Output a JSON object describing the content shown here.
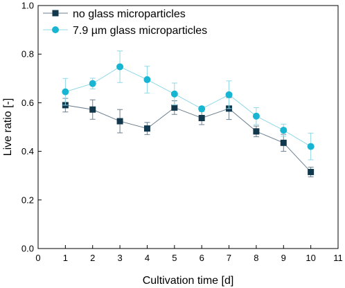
{
  "chart_data": {
    "type": "line",
    "xlabel": "Cultivation time [d]",
    "ylabel": "Live ratio [-]",
    "xlim": [
      0,
      11
    ],
    "ylim": [
      0.0,
      1.0
    ],
    "x_ticks": [
      "0",
      "1",
      "2",
      "3",
      "4",
      "5",
      "6",
      "7",
      "8",
      "9",
      "10",
      "11"
    ],
    "y_ticks": [
      "0.0",
      "0.2",
      "0.4",
      "0.6",
      "0.8",
      "1.0"
    ],
    "grid": false,
    "legend_position": "top-left",
    "series": [
      {
        "name": "no glass microparticles",
        "marker": "square",
        "color": "#12384e",
        "line_color": "#6b7f8f",
        "x": [
          1,
          2,
          3,
          4,
          5,
          6,
          7,
          8,
          9,
          10
        ],
        "y": [
          0.59,
          0.572,
          0.524,
          0.494,
          0.58,
          0.537,
          0.576,
          0.482,
          0.435,
          0.315
        ],
        "error": [
          0.028,
          0.04,
          0.048,
          0.025,
          0.028,
          0.027,
          0.045,
          0.022,
          0.035,
          0.02
        ]
      },
      {
        "name": "7.9 µm glass microparticles",
        "marker": "circle",
        "color": "#17b5d2",
        "line_color": "#8fd8e6",
        "x": [
          1,
          2,
          3,
          4,
          5,
          6,
          7,
          8,
          9,
          10
        ],
        "y": [
          0.645,
          0.679,
          0.748,
          0.695,
          0.636,
          0.575,
          0.633,
          0.545,
          0.487,
          0.42
        ],
        "error": [
          0.055,
          0.022,
          0.065,
          0.055,
          0.045,
          0.01,
          0.057,
          0.035,
          0.025,
          0.055
        ]
      }
    ]
  }
}
